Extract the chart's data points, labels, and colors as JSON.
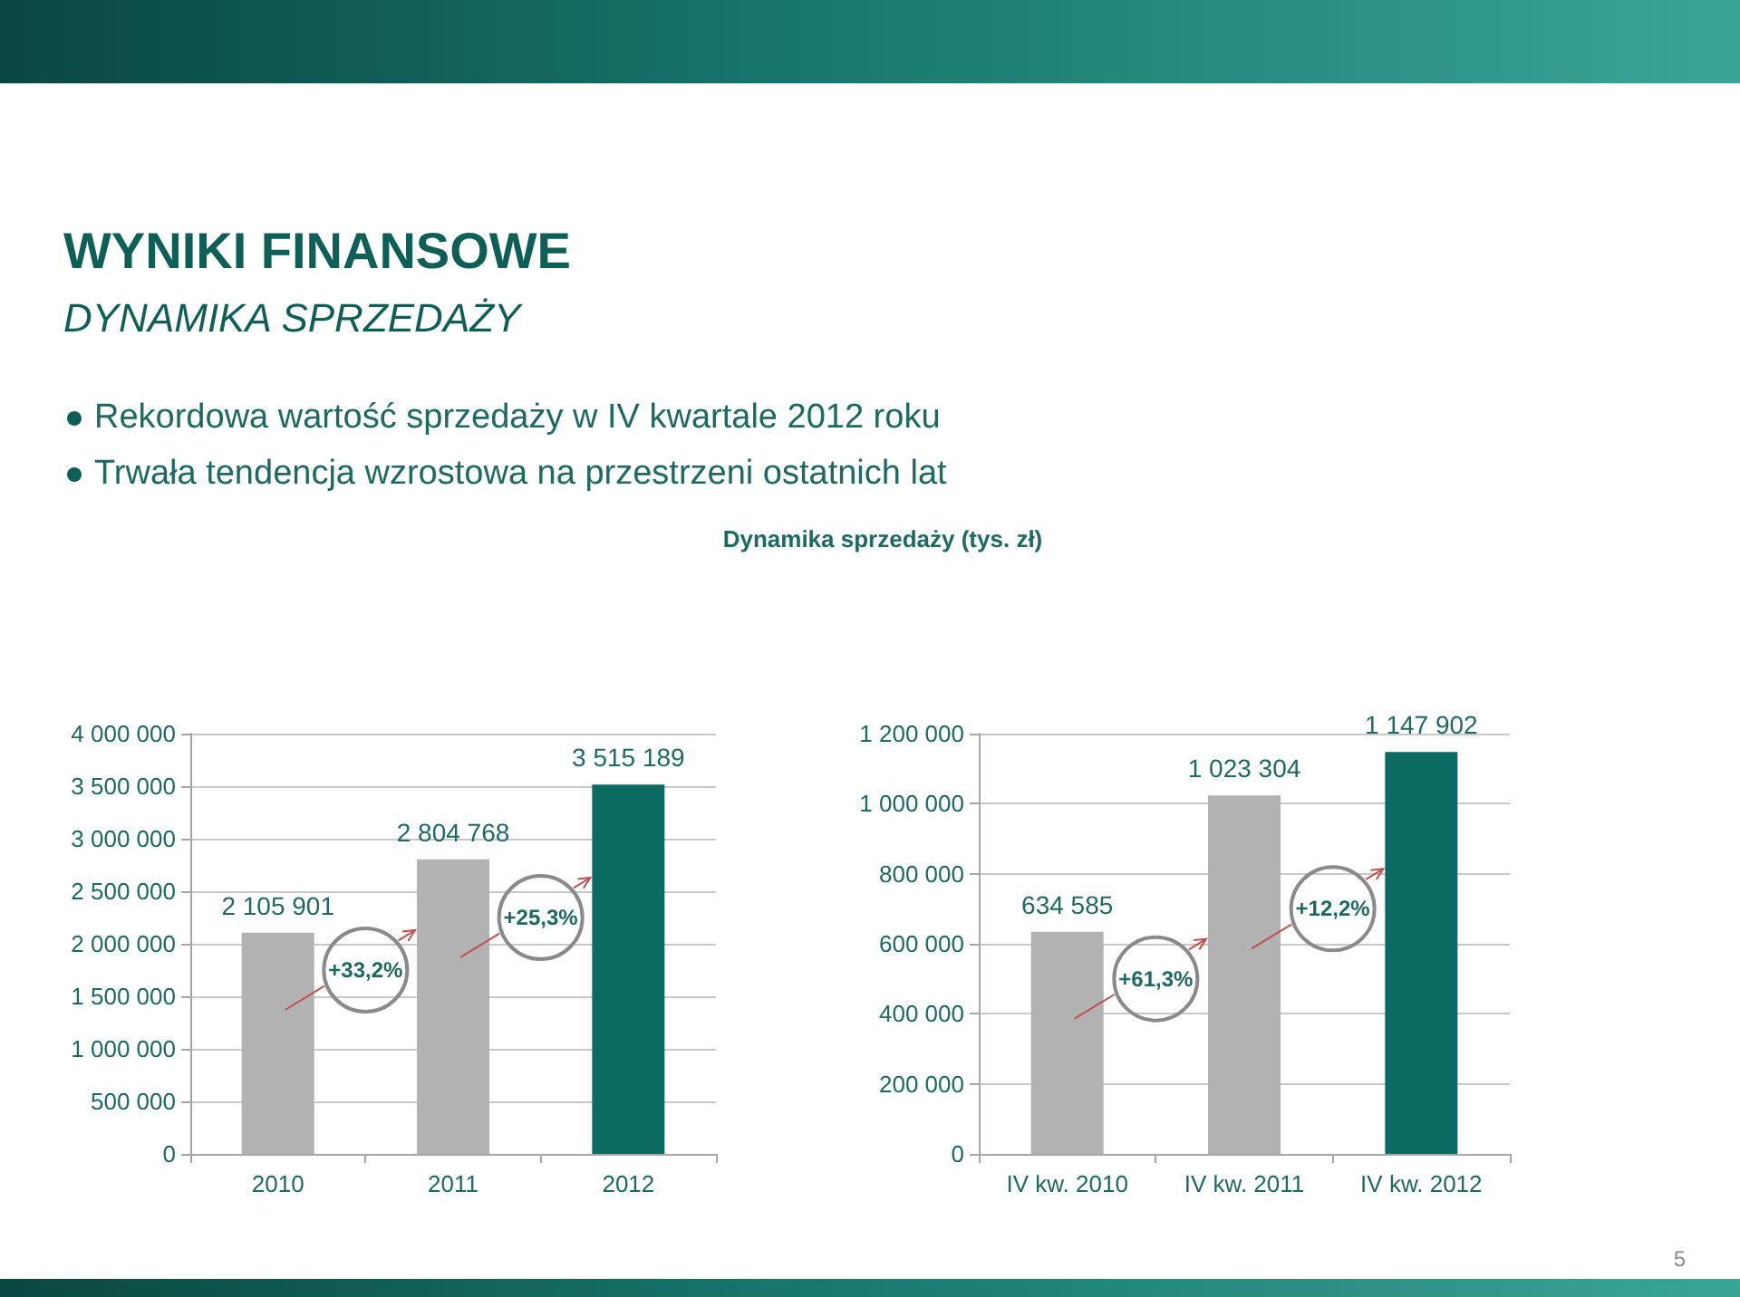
{
  "chart_data": [
    {
      "type": "other",
      "title": "WYNIKI FINANSOWE",
      "subtitle": "DYNAMIKA SPRZEDAŻY",
      "annotations": [
        "Rekordowa wartość sprzedaży w IV kwartale 2012 roku",
        "Trwała tendencja wzrostowa na przestrzeni ostatnich lat"
      ]
    },
    {
      "type": "bar",
      "title": "Dynamika sprzedaży (tys. zł)",
      "categories": [
        "2010",
        "2011",
        "2012"
      ],
      "values": [
        2105901,
        2804768,
        3515189
      ],
      "colors": [
        "#b2b2b2",
        "#b2b2b2",
        "#0b6a62"
      ],
      "value_labels": [
        "2 105 901",
        "2 804 768",
        "3 515 189"
      ],
      "ylim": [
        0,
        4000000
      ],
      "yticks": [
        0,
        {
          "value": 500000,
          "label": "500 000"
        },
        {
          "value": 1000000,
          "label": "1 000 000"
        },
        {
          "value": 1500000,
          "label": "1 500 000"
        },
        {
          "value": 2000000,
          "label": "2 000 000"
        },
        {
          "value": 2500000,
          "label": "2 500 000"
        },
        {
          "value": 3000000,
          "label": "3 000 000"
        },
        {
          "value": 3500000,
          "label": "3 500 000"
        },
        {
          "value": 4000000,
          "label": "4 000 000"
        }
      ],
      "grid": "y",
      "annotations": [
        "+33,2%",
        "+25,3%"
      ]
    },
    {
      "type": "bar",
      "categories": [
        "IV kw. 2010",
        "IV kw. 2011",
        "IV kw. 2012"
      ],
      "values": [
        634585,
        1023304,
        1147902
      ],
      "colors": [
        "#b2b2b2",
        "#b2b2b2",
        "#0b6a62"
      ],
      "value_labels": [
        "634 585",
        "1 023 304",
        "1 147 902"
      ],
      "ylim": [
        0,
        1200000
      ],
      "yticks": [
        0,
        {
          "value": 200000,
          "label": "200 000"
        },
        {
          "value": 400000,
          "label": "400 000"
        },
        {
          "value": 600000,
          "label": "600 000"
        },
        {
          "value": 800000,
          "label": "800 000"
        },
        {
          "value": 1000000,
          "label": "1 000 000"
        },
        {
          "value": 1200000,
          "label": "1 200 000"
        }
      ],
      "grid": "y",
      "annotations": [
        "+61,3%",
        "+12,2%"
      ]
    },
    {
      "type": "other",
      "annotations": [
        "5"
      ]
    }
  ]
}
